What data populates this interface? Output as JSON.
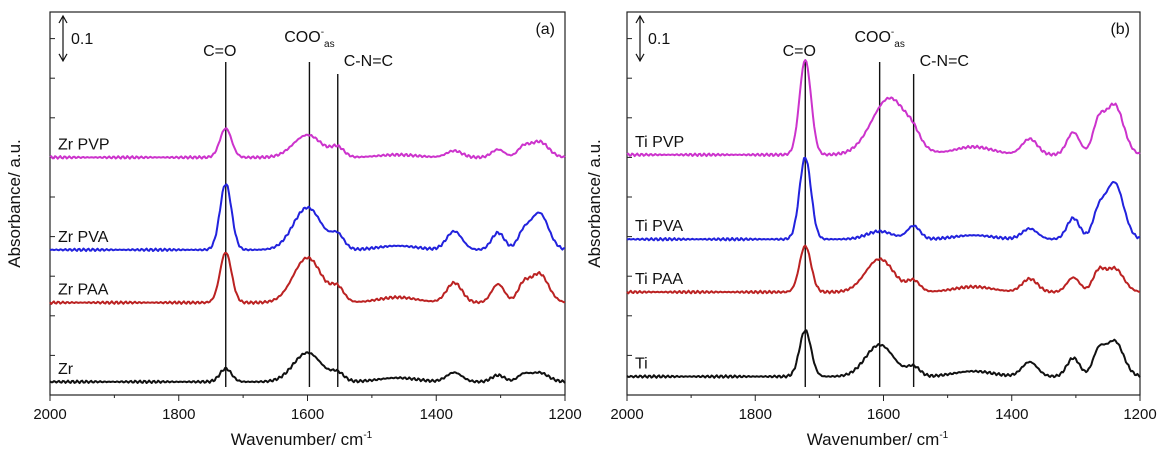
{
  "chart_data": [
    {
      "type": "line",
      "panel_label": "(a)",
      "xlabel": "Wavenumber/ cm",
      "xlabel_sup": "-1",
      "ylabel": "Absorbance/ a.u.",
      "xlim": [
        2000,
        1200
      ],
      "x_ticks": [
        2000,
        1800,
        1600,
        1400,
        1200
      ],
      "scale_bar_label": "0.1",
      "scale_bar_value": 0.1,
      "grid": false,
      "vertical_markers": [
        {
          "x": 1727,
          "label": "C=O",
          "sup": "",
          "sub": ""
        },
        {
          "x": 1597,
          "label": "COO",
          "sup": "-",
          "sub": "as"
        },
        {
          "x": 1553,
          "label": "C-N=C",
          "sup": "",
          "sub": ""
        }
      ],
      "series": [
        {
          "name": "Zr PVP",
          "color": "#cc33cc",
          "offset": 1.8,
          "peaks": [
            [
              1727,
              0.22,
              9
            ],
            [
              1600,
              0.17,
              22
            ],
            [
              1553,
              0.07,
              10
            ],
            [
              1460,
              0.02,
              30
            ],
            [
              1372,
              0.05,
              12
            ],
            [
              1304,
              0.06,
              10
            ],
            [
              1265,
              0.07,
              9
            ],
            [
              1240,
              0.12,
              14
            ]
          ]
        },
        {
          "name": "Zr PVA",
          "color": "#2222dd",
          "offset": 1.1,
          "peaks": [
            [
              1727,
              0.5,
              9
            ],
            [
              1600,
              0.32,
              22
            ],
            [
              1553,
              0.1,
              10
            ],
            [
              1460,
              0.03,
              30
            ],
            [
              1372,
              0.14,
              12
            ],
            [
              1304,
              0.13,
              10
            ],
            [
              1265,
              0.11,
              9
            ],
            [
              1240,
              0.28,
              14
            ]
          ]
        },
        {
          "name": "Zr PAA",
          "color": "#bb2222",
          "offset": 0.7,
          "peaks": [
            [
              1727,
              0.38,
              9
            ],
            [
              1600,
              0.34,
              22
            ],
            [
              1553,
              0.1,
              10
            ],
            [
              1460,
              0.04,
              30
            ],
            [
              1372,
              0.15,
              12
            ],
            [
              1304,
              0.14,
              10
            ],
            [
              1265,
              0.12,
              9
            ],
            [
              1240,
              0.22,
              14
            ]
          ]
        },
        {
          "name": "Zr",
          "color": "#111111",
          "offset": 0.1,
          "peaks": [
            [
              1727,
              0.1,
              9
            ],
            [
              1600,
              0.22,
              22
            ],
            [
              1553,
              0.06,
              10
            ],
            [
              1460,
              0.03,
              30
            ],
            [
              1372,
              0.07,
              12
            ],
            [
              1304,
              0.05,
              10
            ],
            [
              1265,
              0.05,
              9
            ],
            [
              1240,
              0.07,
              14
            ]
          ]
        }
      ]
    },
    {
      "type": "line",
      "panel_label": "(b)",
      "xlabel": "Wavenumber/ cm",
      "xlabel_sup": "-1",
      "ylabel": "Absorbance/ a.u.",
      "xlim": [
        2000,
        1200
      ],
      "x_ticks": [
        2000,
        1800,
        1600,
        1400,
        1200
      ],
      "scale_bar_label": "0.1",
      "scale_bar_value": 0.1,
      "grid": false,
      "vertical_markers": [
        {
          "x": 1722,
          "label": "C=O",
          "sup": "",
          "sub": ""
        },
        {
          "x": 1606,
          "label": "COO",
          "sup": "-",
          "sub": "as"
        },
        {
          "x": 1553,
          "label": "C-N=C",
          "sup": "",
          "sub": ""
        }
      ],
      "series": [
        {
          "name": "Ti PVP",
          "color": "#cc33cc",
          "offset": 1.82,
          "peaks": [
            [
              1722,
              0.72,
              9
            ],
            [
              1590,
              0.43,
              28
            ],
            [
              1553,
              0.06,
              10
            ],
            [
              1460,
              0.06,
              30
            ],
            [
              1372,
              0.12,
              12
            ],
            [
              1304,
              0.17,
              10
            ],
            [
              1265,
              0.22,
              9
            ],
            [
              1240,
              0.38,
              14
            ]
          ]
        },
        {
          "name": "Ti PVA",
          "color": "#2222dd",
          "offset": 1.18,
          "peaks": [
            [
              1722,
              0.62,
              9
            ],
            [
              1606,
              0.06,
              20
            ],
            [
              1553,
              0.1,
              10
            ],
            [
              1460,
              0.03,
              30
            ],
            [
              1372,
              0.08,
              12
            ],
            [
              1304,
              0.16,
              10
            ],
            [
              1265,
              0.18,
              9
            ],
            [
              1240,
              0.43,
              14
            ]
          ]
        },
        {
          "name": "Ti PAA",
          "color": "#bb2222",
          "offset": 0.78,
          "peaks": [
            [
              1722,
              0.35,
              9
            ],
            [
              1606,
              0.25,
              22
            ],
            [
              1553,
              0.08,
              10
            ],
            [
              1460,
              0.04,
              30
            ],
            [
              1372,
              0.1,
              12
            ],
            [
              1304,
              0.11,
              10
            ],
            [
              1265,
              0.14,
              9
            ],
            [
              1240,
              0.18,
              14
            ]
          ]
        },
        {
          "name": "Ti",
          "color": "#111111",
          "offset": 0.14,
          "peaks": [
            [
              1722,
              0.35,
              9
            ],
            [
              1606,
              0.24,
              22
            ],
            [
              1553,
              0.07,
              10
            ],
            [
              1460,
              0.04,
              30
            ],
            [
              1372,
              0.11,
              12
            ],
            [
              1304,
              0.14,
              10
            ],
            [
              1265,
              0.17,
              9
            ],
            [
              1240,
              0.27,
              14
            ]
          ]
        }
      ]
    }
  ]
}
